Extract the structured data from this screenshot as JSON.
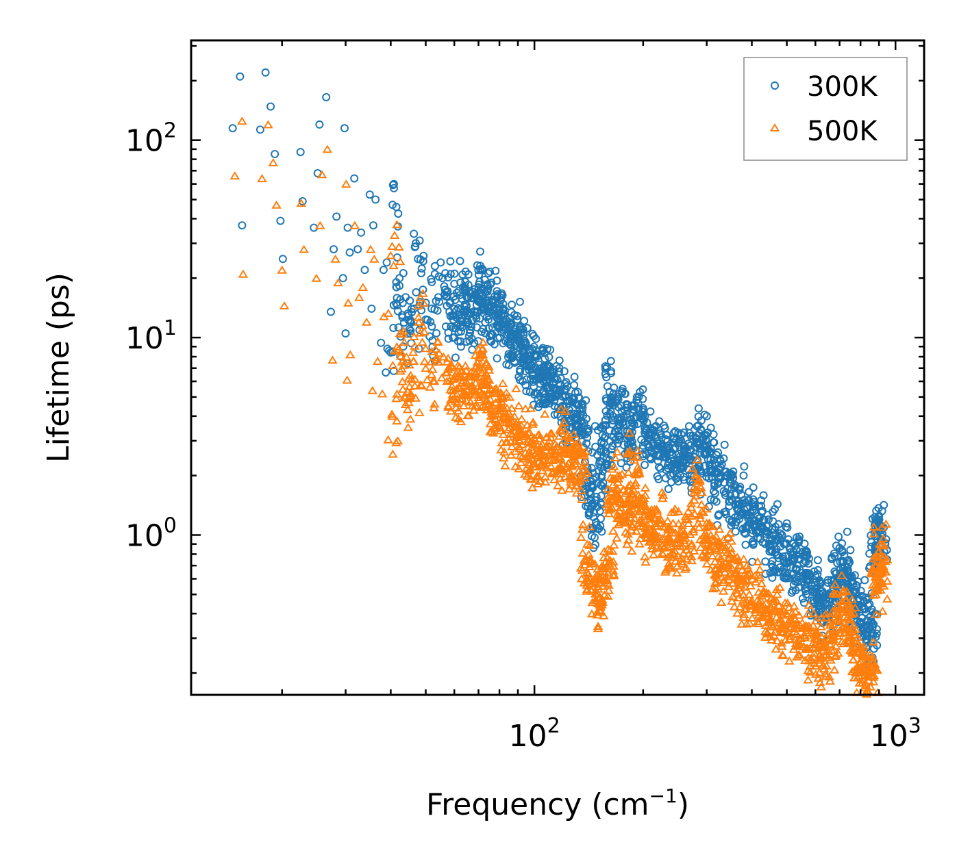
{
  "chart_data": {
    "type": "scatter",
    "title": "",
    "xlabel": "Frequency (cm",
    "xlabel_sup": "−1",
    "xlabel_tail": ")",
    "ylabel": "Lifetime (ps)",
    "xscale": "log",
    "yscale": "log",
    "xlim": [
      11.2,
      1200
    ],
    "ylim": [
      0.155,
      320
    ],
    "x_ticks": [
      {
        "value": 100,
        "base": "10",
        "exp": "2"
      },
      {
        "value": 1000,
        "base": "10",
        "exp": "3"
      }
    ],
    "y_ticks": [
      {
        "value": 1,
        "base": "10",
        "exp": "0"
      },
      {
        "value": 10,
        "base": "10",
        "exp": "1"
      },
      {
        "value": 100,
        "base": "10",
        "exp": "2"
      }
    ],
    "legend_position": "top-right",
    "series": [
      {
        "name": "300K",
        "marker": "circle",
        "color": "#1f77b4",
        "points": [
          [
            14.6,
            115
          ],
          [
            15.3,
            210
          ],
          [
            15.5,
            37
          ],
          [
            17.4,
            113
          ],
          [
            18.0,
            220
          ],
          [
            18.6,
            148
          ],
          [
            19.1,
            85
          ],
          [
            19.8,
            39
          ],
          [
            20.1,
            25
          ],
          [
            22.5,
            87
          ],
          [
            22.8,
            49
          ],
          [
            24.5,
            36
          ],
          [
            25.1,
            68
          ],
          [
            25.4,
            120
          ],
          [
            26.5,
            165
          ],
          [
            27.3,
            13.5
          ],
          [
            27.8,
            28
          ],
          [
            28.3,
            41
          ],
          [
            29.5,
            20
          ],
          [
            29.8,
            115
          ],
          [
            30.0,
            10.5
          ],
          [
            30.4,
            36
          ],
          [
            30.8,
            27
          ],
          [
            31.7,
            64
          ],
          [
            32.4,
            28
          ],
          [
            33.1,
            34
          ],
          [
            33.9,
            22
          ],
          [
            35.0,
            53
          ],
          [
            35.4,
            14
          ],
          [
            35.8,
            37
          ],
          [
            36.3,
            50
          ],
          [
            37.6,
            9.4
          ],
          [
            38.2,
            22
          ],
          [
            39.0,
            24
          ],
          [
            40.0,
            8.4
          ],
          [
            40.8,
            60
          ],
          [
            41.5,
            18
          ],
          [
            42.3,
            20
          ],
          [
            43.0,
            13
          ],
          [
            44.0,
            16
          ],
          [
            45.3,
            12
          ],
          [
            46.4,
            14
          ],
          [
            47.6,
            25
          ],
          [
            48.1,
            31
          ],
          [
            50.0,
            15
          ],
          [
            51.5,
            12
          ],
          [
            53.0,
            21
          ],
          [
            55.0,
            24
          ],
          [
            57.0,
            17
          ],
          [
            58.6,
            21
          ],
          [
            60.0,
            14
          ],
          [
            62.4,
            19
          ],
          [
            65.0,
            16
          ],
          [
            67.5,
            17
          ],
          [
            70.0,
            18
          ],
          [
            72.0,
            22
          ],
          [
            74.0,
            15
          ],
          [
            76.0,
            19
          ],
          [
            79.0,
            16
          ],
          [
            82.0,
            14
          ],
          [
            85.0,
            12
          ],
          [
            88.0,
            13
          ],
          [
            91.0,
            11
          ],
          [
            94.0,
            9.6
          ],
          [
            97.0,
            8.7
          ],
          [
            99.8,
            8.1
          ],
          [
            103,
            7.3
          ],
          [
            106,
            6.8
          ],
          [
            109,
            7.2
          ],
          [
            113,
            6.6
          ],
          [
            118,
            5.8
          ],
          [
            122,
            5.1
          ],
          [
            127,
            4.7
          ],
          [
            132,
            5.3
          ],
          [
            136,
            4.4
          ],
          [
            140,
            2.2
          ],
          [
            144,
            1.8
          ],
          [
            148,
            1.5
          ],
          [
            153,
            2.7
          ],
          [
            158,
            3.6
          ],
          [
            163,
            6.6
          ],
          [
            168,
            4.8
          ],
          [
            174,
            4.5
          ],
          [
            180,
            4.1
          ],
          [
            188,
            3.9
          ],
          [
            196,
            5.3
          ],
          [
            205,
            3.7
          ],
          [
            214,
            3.4
          ],
          [
            224,
            3.2
          ],
          [
            234,
            3.0
          ],
          [
            244,
            3.1
          ],
          [
            255,
            3.0
          ],
          [
            267,
            2.9
          ],
          [
            279,
            2.8
          ],
          [
            290,
            3.8
          ],
          [
            302,
            3.3
          ],
          [
            314,
            2.4
          ],
          [
            328,
            2.2
          ],
          [
            342,
            2.0
          ],
          [
            358,
            1.8
          ],
          [
            374,
            1.6
          ],
          [
            390,
            1.5
          ],
          [
            408,
            1.4
          ],
          [
            426,
            1.3
          ],
          [
            445,
            1.2
          ],
          [
            465,
            1.1
          ],
          [
            485,
            1.0
          ],
          [
            505,
            0.95
          ],
          [
            528,
            0.88
          ],
          [
            552,
            0.82
          ],
          [
            576,
            0.76
          ],
          [
            600,
            0.62
          ],
          [
            620,
            0.52
          ],
          [
            645,
            0.45
          ],
          [
            668,
            0.56
          ],
          [
            690,
            0.72
          ],
          [
            712,
            0.82
          ],
          [
            735,
            0.74
          ],
          [
            760,
            0.58
          ],
          [
            785,
            0.47
          ],
          [
            810,
            0.42
          ],
          [
            840,
            0.44
          ],
          [
            860,
            0.42
          ],
          [
            880,
            1.08
          ],
          [
            900,
            1.25
          ],
          [
            910,
            1.1
          ]
        ]
      },
      {
        "name": "500K",
        "marker": "triangle",
        "color": "#ff7f0e",
        "points": [
          [
            14.8,
            66
          ],
          [
            15.5,
            125
          ],
          [
            15.6,
            21
          ],
          [
            17.6,
            64
          ],
          [
            18.3,
            120
          ],
          [
            18.9,
            77
          ],
          [
            19.3,
            47
          ],
          [
            20.0,
            22
          ],
          [
            20.3,
            14.5
          ],
          [
            22.6,
            48
          ],
          [
            23.0,
            28
          ],
          [
            24.9,
            20
          ],
          [
            25.5,
            37
          ],
          [
            25.8,
            67
          ],
          [
            26.7,
            90
          ],
          [
            27.6,
            7.7
          ],
          [
            28.1,
            25
          ],
          [
            28.6,
            19
          ],
          [
            30.1,
            60
          ],
          [
            30.3,
            6.1
          ],
          [
            30.5,
            15
          ],
          [
            30.9,
            8.2
          ],
          [
            31.8,
            37
          ],
          [
            32.7,
            16
          ],
          [
            33.5,
            18
          ],
          [
            34.3,
            12
          ],
          [
            35.2,
            28
          ],
          [
            35.6,
            5.4
          ],
          [
            36.0,
            25
          ],
          [
            36.8,
            7.6
          ],
          [
            37.9,
            5.2
          ],
          [
            38.3,
            12.8
          ],
          [
            39.4,
            13.3
          ],
          [
            40.3,
            4.1
          ],
          [
            41.0,
            33
          ],
          [
            41.6,
            9.0
          ],
          [
            42.4,
            10.5
          ],
          [
            43.1,
            6.0
          ],
          [
            44.2,
            8.0
          ],
          [
            45.2,
            5.0
          ],
          [
            46.2,
            7.6
          ],
          [
            47.8,
            12
          ],
          [
            48.3,
            16
          ],
          [
            50.0,
            7.0
          ],
          [
            52.0,
            8.5
          ],
          [
            54.0,
            9.5
          ],
          [
            56.0,
            8.0
          ],
          [
            58.0,
            7.1
          ],
          [
            60.0,
            6.2
          ],
          [
            63.0,
            6.8
          ],
          [
            66.0,
            6.4
          ],
          [
            69.0,
            7.2
          ],
          [
            72.0,
            8.2
          ],
          [
            75.0,
            6.1
          ],
          [
            78.0,
            5.5
          ],
          [
            81.0,
            5.0
          ],
          [
            84.0,
            4.4
          ],
          [
            88.0,
            4.0
          ],
          [
            92.0,
            3.6
          ],
          [
            96.0,
            3.3
          ],
          [
            100,
            3.1
          ],
          [
            105,
            2.9
          ],
          [
            110,
            3.0
          ],
          [
            115,
            2.8
          ],
          [
            120,
            3.5
          ],
          [
            125,
            3.1
          ],
          [
            130,
            2.9
          ],
          [
            135,
            2.6
          ],
          [
            140,
            0.9
          ],
          [
            145,
            0.72
          ],
          [
            150,
            0.55
          ],
          [
            155,
            0.62
          ],
          [
            160,
            0.85
          ],
          [
            165,
            1.8
          ],
          [
            170,
            2.0
          ],
          [
            176,
            1.7
          ],
          [
            182,
            1.5
          ],
          [
            188,
            2.5
          ],
          [
            194,
            1.6
          ],
          [
            202,
            1.4
          ],
          [
            210,
            1.3
          ],
          [
            220,
            1.2
          ],
          [
            230,
            1.1
          ],
          [
            242,
            1.15
          ],
          [
            254,
            1.05
          ],
          [
            266,
            1.2
          ],
          [
            280,
            1.95
          ],
          [
            294,
            1.3
          ],
          [
            308,
            1.0
          ],
          [
            322,
            0.92
          ],
          [
            338,
            0.84
          ],
          [
            354,
            0.76
          ],
          [
            372,
            0.7
          ],
          [
            390,
            0.64
          ],
          [
            410,
            0.58
          ],
          [
            430,
            0.52
          ],
          [
            452,
            0.48
          ],
          [
            475,
            0.44
          ],
          [
            500,
            0.4
          ],
          [
            525,
            0.38
          ],
          [
            552,
            0.36
          ],
          [
            580,
            0.34
          ],
          [
            608,
            0.32
          ],
          [
            635,
            0.29
          ],
          [
            660,
            0.35
          ],
          [
            690,
            0.44
          ],
          [
            715,
            0.52
          ],
          [
            740,
            0.45
          ],
          [
            765,
            0.35
          ],
          [
            790,
            0.28
          ],
          [
            815,
            0.25
          ],
          [
            840,
            0.24
          ],
          [
            860,
            0.23
          ],
          [
            890,
            0.78
          ],
          [
            905,
            0.9
          ],
          [
            915,
            0.72
          ]
        ]
      }
    ]
  }
}
